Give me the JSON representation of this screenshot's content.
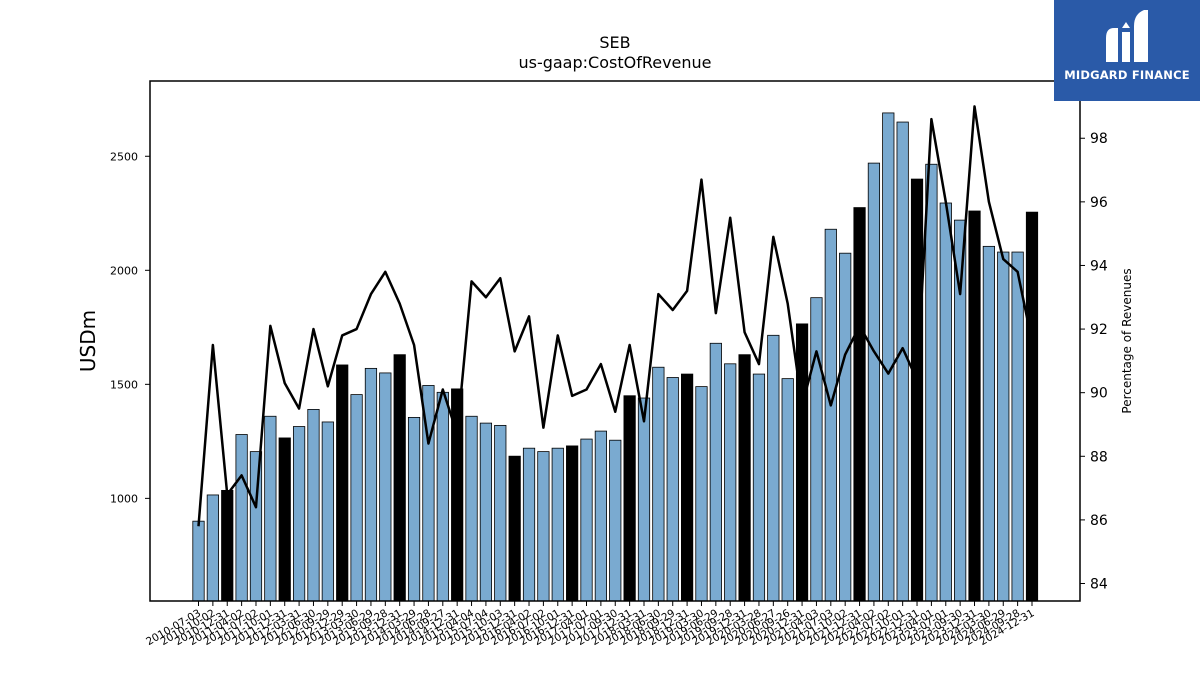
{
  "chart_data": {
    "type": "bar",
    "title": "SEB",
    "subtitle": "us-gaap:CostOfRevenue",
    "ylabel": "USDm",
    "y2label": "Percentage of Revenues",
    "ylim": [
      550,
      2830
    ],
    "y2lim": [
      83.45,
      99.8
    ],
    "yticks": [
      1000,
      1500,
      2000,
      2500
    ],
    "y2ticks": [
      84,
      86,
      88,
      90,
      92,
      94,
      96,
      98
    ],
    "colors": {
      "regular_bar": "#7aaad0",
      "annual_bar": "#000000",
      "line": "#000000"
    },
    "categories": [
      "2010-07-03",
      "2010-10-02",
      "2010-12-31",
      "2011-04-02",
      "2011-07-02",
      "2011-10-01",
      "2011-12-31",
      "2012-03-31",
      "2012-06-30",
      "2012-09-29",
      "2012-12-29",
      "2013-03-30",
      "2013-06-29",
      "2013-09-28",
      "2013-12-31",
      "2014-03-29",
      "2014-06-28",
      "2014-09-27",
      "2014-12-31",
      "2015-04-04",
      "2015-07-04",
      "2015-10-03",
      "2015-12-31",
      "2016-04-02",
      "2016-07-02",
      "2016-10-01",
      "2016-12-31",
      "2017-04-01",
      "2017-07-01",
      "2017-09-30",
      "2017-12-31",
      "2018-03-31",
      "2018-06-30",
      "2018-09-29",
      "2018-12-31",
      "2019-03-30",
      "2019-06-29",
      "2019-09-28",
      "2019-12-31",
      "2020-03-28",
      "2020-06-27",
      "2020-09-26",
      "2020-12-31",
      "2021-04-03",
      "2021-07-03",
      "2021-10-02",
      "2021-12-31",
      "2022-04-02",
      "2022-07-02",
      "2022-10-01",
      "2022-12-31",
      "2023-04-01",
      "2023-07-01",
      "2023-09-30",
      "2023-12-31",
      "2024-03-30",
      "2024-06-29",
      "2024-09-28",
      "2024-12-31"
    ],
    "series": [
      {
        "values": [
          900,
          1015,
          1035,
          1280,
          1205,
          1360,
          1265,
          1315,
          1390,
          1335,
          1585,
          1455,
          1570,
          1550,
          1630,
          1355,
          1495,
          1465,
          1480,
          1360,
          1330,
          1320,
          1185,
          1220,
          1205,
          1220,
          1230,
          1260,
          1295,
          1255,
          1450,
          1440,
          1575,
          1530,
          1545,
          1490,
          1680,
          1590,
          1630,
          1545,
          1715,
          1525,
          1765,
          1880,
          2180,
          2075,
          2275,
          2470,
          2690,
          2650,
          2400,
          2465,
          2295,
          2220,
          2260,
          2105,
          2080,
          2080,
          2255
        ],
        "annual": [
          false,
          false,
          true,
          false,
          false,
          false,
          true,
          false,
          false,
          false,
          true,
          false,
          false,
          false,
          true,
          false,
          false,
          false,
          true,
          false,
          false,
          false,
          true,
          false,
          false,
          false,
          true,
          false,
          false,
          false,
          true,
          false,
          false,
          false,
          true,
          false,
          false,
          false,
          true,
          false,
          false,
          false,
          true,
          false,
          false,
          false,
          true,
          false,
          false,
          false,
          true,
          false,
          false,
          false,
          true,
          false,
          false,
          false,
          true
        ]
      },
      {
        "name": "Percentage of Revenues",
        "values": [
          85.8,
          91.5,
          86.8,
          87.4,
          86.4,
          92.1,
          90.3,
          89.5,
          92.0,
          90.2,
          91.8,
          92.0,
          93.1,
          93.8,
          92.8,
          91.5,
          88.4,
          90.1,
          88.7,
          93.5,
          93.0,
          93.6,
          91.3,
          92.4,
          88.9,
          91.8,
          89.9,
          90.1,
          90.9,
          89.4,
          91.5,
          89.1,
          93.1,
          92.6,
          93.2,
          96.7,
          92.5,
          95.5,
          91.9,
          90.9,
          94.9,
          92.8,
          89.6,
          91.3,
          89.6,
          91.2,
          92.1,
          91.3,
          90.6,
          91.4,
          90.4,
          98.6,
          96.0,
          93.1,
          99.0,
          96.0,
          94.2,
          93.8,
          91.6
        ]
      }
    ]
  },
  "logo": {
    "text": "MIDGARD FINANCE"
  }
}
